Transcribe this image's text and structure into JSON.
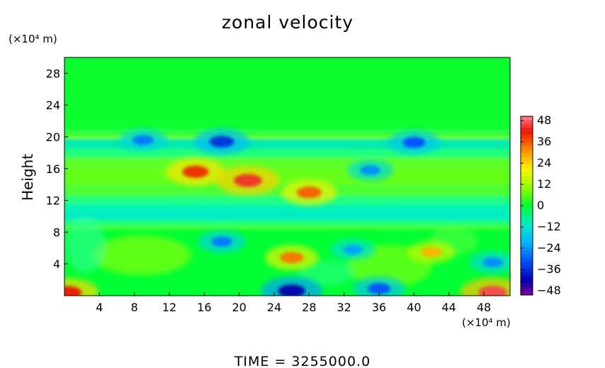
{
  "chart_data": {
    "type": "heatmap",
    "title": "zonal velocity",
    "ylabel": "Height",
    "xlabel": "",
    "x_unit": "(×10⁴ m)",
    "y_unit": "(×10⁴ m)",
    "footer": "TIME  =  3255000.0",
    "x_ticks": [
      "4",
      "8",
      "12",
      "16",
      "20",
      "24",
      "28",
      "32",
      "36",
      "40",
      "44",
      "48"
    ],
    "y_ticks": [
      "4",
      "8",
      "12",
      "16",
      "20",
      "24",
      "28"
    ],
    "xlim": [
      0,
      51
    ],
    "ylim": [
      0,
      30
    ],
    "colorbar": {
      "ticks": [
        "48",
        "36",
        "24",
        "12",
        "0",
        "−12",
        "−24",
        "−36",
        "−48"
      ],
      "range": [
        -48,
        48
      ]
    },
    "features": [
      {
        "x": 18,
        "y": 19.4,
        "value": -34
      },
      {
        "x": 9,
        "y": 19.6,
        "value": -26
      },
      {
        "x": 40,
        "y": 19.3,
        "value": -30
      },
      {
        "x": 15,
        "y": 15.6,
        "value": 38
      },
      {
        "x": 21,
        "y": 14.5,
        "value": 42
      },
      {
        "x": 28,
        "y": 13.0,
        "value": 34
      },
      {
        "x": 35,
        "y": 15.8,
        "value": -24
      },
      {
        "x": 18,
        "y": 6.8,
        "value": -26
      },
      {
        "x": 26,
        "y": 4.8,
        "value": 32
      },
      {
        "x": 33,
        "y": 5.8,
        "value": -22
      },
      {
        "x": 42,
        "y": 5.5,
        "value": 26
      },
      {
        "x": 49,
        "y": 4.2,
        "value": -24
      },
      {
        "x": 26,
        "y": 0.6,
        "value": -40
      },
      {
        "x": 49,
        "y": 0.4,
        "value": 44
      },
      {
        "x": 0.4,
        "y": 0.4,
        "value": 40
      },
      {
        "x": 36,
        "y": 0.9,
        "value": -30
      }
    ]
  },
  "colors": {
    "background": "#00ff33",
    "frame": "#000000"
  }
}
